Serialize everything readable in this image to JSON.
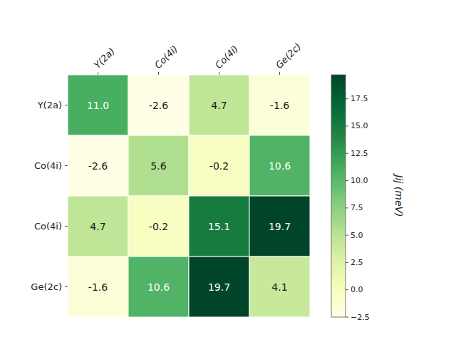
{
  "chart_data": {
    "type": "heatmap",
    "categories": [
      "Y(2a)",
      "Co(4i)",
      "Co(4i)",
      "Ge(2c)"
    ],
    "matrix": [
      [
        11.0,
        -2.6,
        4.7,
        -1.6
      ],
      [
        -2.6,
        5.6,
        -0.2,
        10.6
      ],
      [
        4.7,
        -0.2,
        15.1,
        19.7
      ],
      [
        -1.6,
        10.6,
        19.7,
        4.1
      ]
    ],
    "value_labels": [
      [
        "11.0",
        "-2.6",
        "4.7",
        "-1.6"
      ],
      [
        "-2.6",
        "5.6",
        "-0.2",
        "10.6"
      ],
      [
        "4.7",
        "-0.2",
        "15.1",
        "19.7"
      ],
      [
        "-1.6",
        "10.6",
        "19.7",
        "4.1"
      ]
    ],
    "data_labels": true,
    "color": "YlGn",
    "colorbar_label": "Jij (meV)",
    "colorbar_range": [
      -2.5,
      19.7
    ],
    "colorbar_ticks": [
      {
        "value": -2.5,
        "label": "−2.5"
      },
      {
        "value": 0.0,
        "label": "0.0"
      },
      2.5,
      {
        "value": 5.0,
        "label": "5.0"
      },
      7.5,
      {
        "value": 10.0,
        "label": "10.0"
      },
      12.5,
      {
        "value": 15.0,
        "label": "15.0"
      },
      17.5
    ]
  }
}
